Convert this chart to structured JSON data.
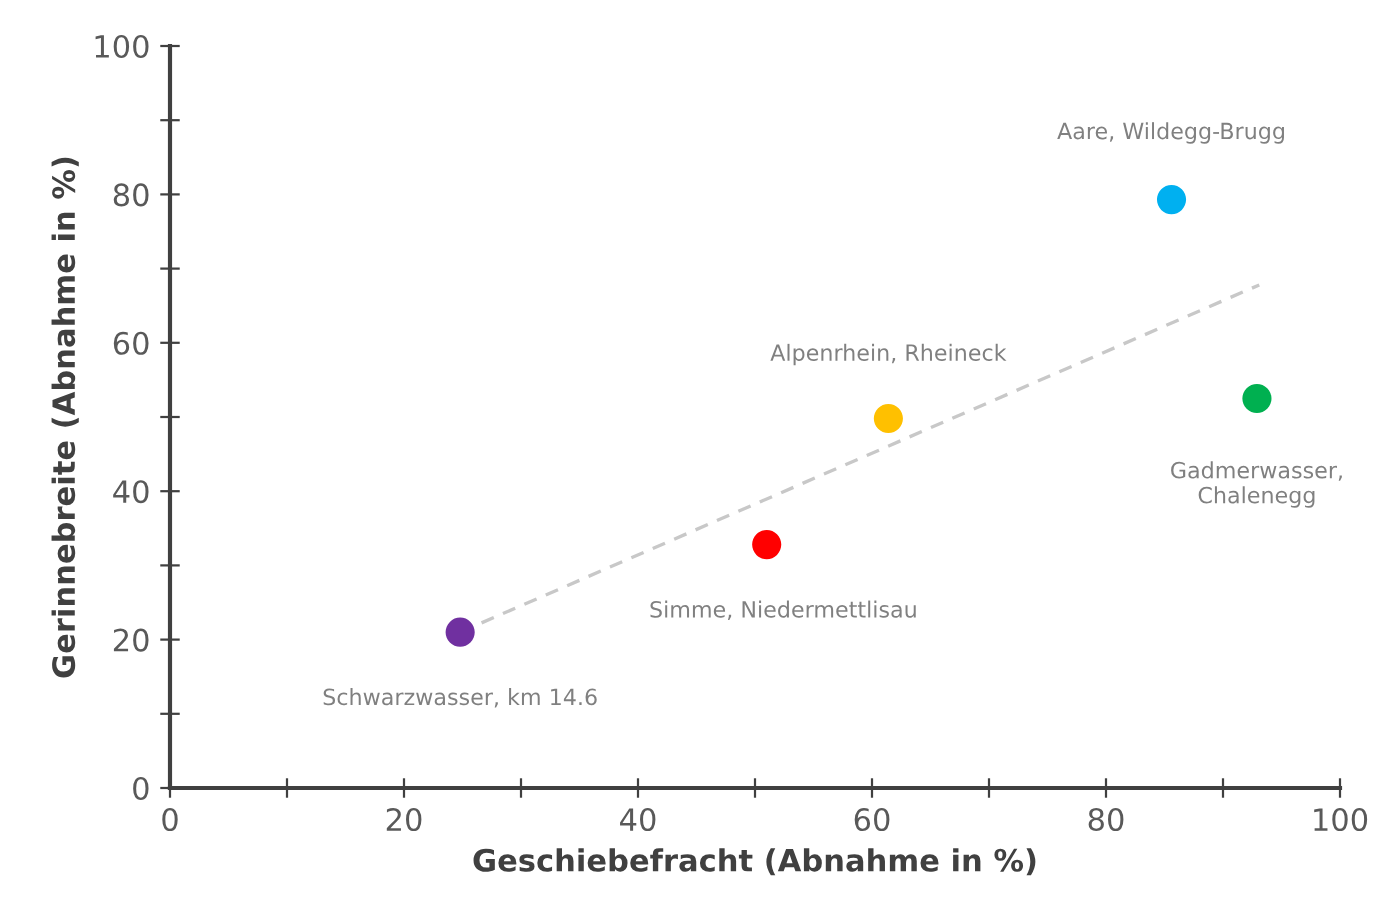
{
  "chart_data": {
    "type": "scatter",
    "xlabel": "Geschiebefracht (Abnahme in %)",
    "ylabel": "Gerinnebreite (Abnahme in %)",
    "xlim": [
      0,
      100
    ],
    "ylim": [
      0,
      100
    ],
    "xticks": [
      0,
      {
        "value": 10,
        "label": null
      },
      20,
      {
        "value": 30,
        "label": null
      },
      40,
      {
        "value": 50,
        "label": null
      },
      60,
      {
        "value": 70,
        "label": null
      },
      80,
      {
        "value": 90,
        "label": null
      },
      100
    ],
    "yticks": [
      0,
      {
        "value": 10,
        "label": null
      },
      20,
      {
        "value": 30,
        "label": null
      },
      40,
      {
        "value": 50,
        "label": null
      },
      60,
      {
        "value": 70,
        "label": null
      },
      80,
      {
        "value": 90,
        "label": null
      },
      100
    ],
    "grid": false,
    "legend": false,
    "series": [
      {
        "marker": "circle",
        "x": [
          24.8,
          51.0,
          61.4,
          85.6,
          92.9
        ],
        "values": [
          21.0,
          32.8,
          49.8,
          79.3,
          52.5
        ],
        "colors": [
          "#7030a0",
          "#ff0000",
          "#ffc000",
          "#00b0f0",
          "#00b050"
        ]
      },
      {
        "type": "line",
        "x": [
          24.8,
          93.1
        ],
        "values": [
          21.0,
          67.8
        ],
        "color": "#c8c8c8",
        "line_style": "dashed",
        "marker": "none"
      }
    ],
    "annotations": [
      {
        "text": "Schwarzwasser, km 14.6",
        "x": 24.8,
        "y": 21.0
      },
      {
        "text": "Simme, Niedermettlisau",
        "x": 51.0,
        "y": 32.8
      },
      {
        "text": "Alpenrhein, Rheineck",
        "x": 61.4,
        "y": 49.8
      },
      {
        "text": "Aare, Wildegg-Brugg",
        "x": 85.6,
        "y": 79.3
      },
      {
        "text": "Gadmerwasser,\nChalenegg",
        "x": 92.9,
        "y": 52.5
      }
    ]
  }
}
